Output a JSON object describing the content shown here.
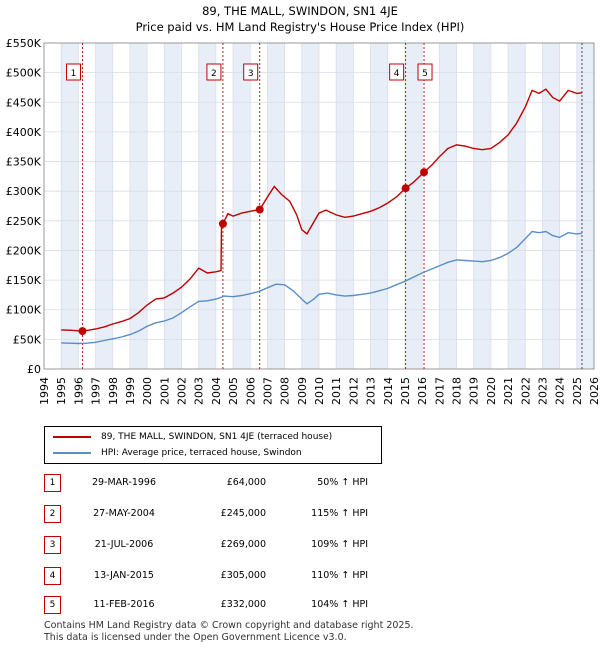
{
  "chart_data": {
    "type": "line",
    "title": "89, THE MALL, SWINDON, SN1 4JE",
    "subtitle": "Price paid vs. HM Land Registry's House Price Index (HPI)",
    "xlim": [
      1994,
      2026
    ],
    "ylim": [
      0,
      550000
    ],
    "x_ticks": [
      "1994",
      "1995",
      "1996",
      "1997",
      "1998",
      "1999",
      "2000",
      "2001",
      "2002",
      "2003",
      "2004",
      "2005",
      "2006",
      "2007",
      "2008",
      "2009",
      "2010",
      "2011",
      "2012",
      "2013",
      "2014",
      "2015",
      "2016",
      "2017",
      "2018",
      "2019",
      "2020",
      "2021",
      "2022",
      "2023",
      "2024",
      "2025",
      "2026"
    ],
    "y_ticks": [
      {
        "value": 0,
        "label": "£0"
      },
      {
        "value": 50000,
        "label": "£50K"
      },
      {
        "value": 100000,
        "label": "£100K"
      },
      {
        "value": 150000,
        "label": "£150K"
      },
      {
        "value": 200000,
        "label": "£200K"
      },
      {
        "value": 250000,
        "label": "£250K"
      },
      {
        "value": 300000,
        "label": "£300K"
      },
      {
        "value": 350000,
        "label": "£350K"
      },
      {
        "value": 400000,
        "label": "£400K"
      },
      {
        "value": 450000,
        "label": "£450K"
      },
      {
        "value": 500000,
        "label": "£500K"
      },
      {
        "value": 550000,
        "label": "£550K"
      }
    ],
    "grid": true,
    "data_end_year": 2025.3,
    "shaded_years": [
      1995,
      1997,
      1999,
      2001,
      2003,
      2005,
      2007,
      2009,
      2011,
      2013,
      2015,
      2017,
      2019,
      2021,
      2023,
      2025
    ],
    "series": [
      {
        "name": "89, THE MALL, SWINDON, SN1 4JE (terraced house)",
        "color": "#c00000",
        "points": [
          [
            1995.0,
            66000
          ],
          [
            1995.5,
            65500
          ],
          [
            1996.0,
            64500
          ],
          [
            1996.24,
            64000
          ],
          [
            1996.6,
            65500
          ],
          [
            1997.0,
            67500
          ],
          [
            1997.5,
            71000
          ],
          [
            1998.0,
            76000
          ],
          [
            1998.5,
            80000
          ],
          [
            1999.0,
            85000
          ],
          [
            1999.5,
            95000
          ],
          [
            2000.0,
            108000
          ],
          [
            2000.5,
            118000
          ],
          [
            2001.0,
            120000
          ],
          [
            2001.5,
            128000
          ],
          [
            2002.0,
            138000
          ],
          [
            2002.5,
            152000
          ],
          [
            2003.0,
            170000
          ],
          [
            2003.5,
            162000
          ],
          [
            2004.0,
            164000
          ],
          [
            2004.3,
            166000
          ],
          [
            2004.33,
            240000
          ],
          [
            2004.41,
            245000
          ],
          [
            2004.7,
            262000
          ],
          [
            2005.0,
            258000
          ],
          [
            2005.5,
            263000
          ],
          [
            2006.0,
            266000
          ],
          [
            2006.55,
            269000
          ],
          [
            2007.0,
            290000
          ],
          [
            2007.4,
            308000
          ],
          [
            2007.8,
            295000
          ],
          [
            2008.3,
            283000
          ],
          [
            2008.7,
            260000
          ],
          [
            2009.0,
            235000
          ],
          [
            2009.3,
            228000
          ],
          [
            2009.7,
            248000
          ],
          [
            2010.0,
            263000
          ],
          [
            2010.4,
            268000
          ],
          [
            2011.0,
            260000
          ],
          [
            2011.5,
            256000
          ],
          [
            2012.0,
            258000
          ],
          [
            2012.5,
            262000
          ],
          [
            2013.0,
            266000
          ],
          [
            2013.5,
            272000
          ],
          [
            2014.0,
            280000
          ],
          [
            2014.5,
            290000
          ],
          [
            2015.04,
            305000
          ],
          [
            2015.5,
            315000
          ],
          [
            2016.11,
            332000
          ],
          [
            2016.6,
            345000
          ],
          [
            2017.0,
            358000
          ],
          [
            2017.5,
            372000
          ],
          [
            2018.0,
            378000
          ],
          [
            2018.5,
            376000
          ],
          [
            2019.0,
            372000
          ],
          [
            2019.5,
            370000
          ],
          [
            2020.0,
            372000
          ],
          [
            2020.5,
            382000
          ],
          [
            2021.0,
            395000
          ],
          [
            2021.5,
            415000
          ],
          [
            2022.0,
            442000
          ],
          [
            2022.4,
            470000
          ],
          [
            2022.8,
            465000
          ],
          [
            2023.2,
            472000
          ],
          [
            2023.6,
            458000
          ],
          [
            2024.0,
            452000
          ],
          [
            2024.5,
            470000
          ],
          [
            2025.0,
            465000
          ],
          [
            2025.3,
            466000
          ]
        ]
      },
      {
        "name": "HPI: Average price, terraced house, Swindon",
        "color": "#5a8dc8",
        "points": [
          [
            1995.0,
            44000
          ],
          [
            1995.5,
            43500
          ],
          [
            1996.0,
            43000
          ],
          [
            1996.5,
            43500
          ],
          [
            1997.0,
            45000
          ],
          [
            1997.5,
            48000
          ],
          [
            1998.0,
            51000
          ],
          [
            1998.5,
            54000
          ],
          [
            1999.0,
            58000
          ],
          [
            1999.5,
            64000
          ],
          [
            2000.0,
            72000
          ],
          [
            2000.5,
            78000
          ],
          [
            2001.0,
            81000
          ],
          [
            2001.5,
            86000
          ],
          [
            2002.0,
            95000
          ],
          [
            2002.5,
            105000
          ],
          [
            2003.0,
            114000
          ],
          [
            2003.5,
            115000
          ],
          [
            2004.0,
            118000
          ],
          [
            2004.5,
            123000
          ],
          [
            2005.0,
            122000
          ],
          [
            2005.5,
            124000
          ],
          [
            2006.0,
            127000
          ],
          [
            2006.5,
            131000
          ],
          [
            2007.0,
            137000
          ],
          [
            2007.5,
            143000
          ],
          [
            2008.0,
            142000
          ],
          [
            2008.5,
            132000
          ],
          [
            2009.0,
            118000
          ],
          [
            2009.3,
            110000
          ],
          [
            2009.7,
            118000
          ],
          [
            2010.0,
            126000
          ],
          [
            2010.5,
            128000
          ],
          [
            2011.0,
            125000
          ],
          [
            2011.5,
            123000
          ],
          [
            2012.0,
            124000
          ],
          [
            2012.5,
            126000
          ],
          [
            2013.0,
            128000
          ],
          [
            2013.5,
            132000
          ],
          [
            2014.0,
            136000
          ],
          [
            2014.5,
            142000
          ],
          [
            2015.0,
            148000
          ],
          [
            2015.5,
            155000
          ],
          [
            2016.0,
            162000
          ],
          [
            2016.5,
            168000
          ],
          [
            2017.0,
            174000
          ],
          [
            2017.5,
            180000
          ],
          [
            2018.0,
            184000
          ],
          [
            2018.5,
            183000
          ],
          [
            2019.0,
            182000
          ],
          [
            2019.5,
            181000
          ],
          [
            2020.0,
            183000
          ],
          [
            2020.5,
            188000
          ],
          [
            2021.0,
            195000
          ],
          [
            2021.5,
            205000
          ],
          [
            2022.0,
            220000
          ],
          [
            2022.4,
            232000
          ],
          [
            2022.8,
            230000
          ],
          [
            2023.2,
            232000
          ],
          [
            2023.6,
            225000
          ],
          [
            2024.0,
            222000
          ],
          [
            2024.5,
            230000
          ],
          [
            2025.0,
            228000
          ],
          [
            2025.3,
            229000
          ]
        ]
      }
    ],
    "sales": [
      {
        "id": "1",
        "year": 1996.24,
        "value": 64000
      },
      {
        "id": "2",
        "year": 2004.41,
        "value": 245000
      },
      {
        "id": "3",
        "year": 2006.55,
        "value": 269000
      },
      {
        "id": "4",
        "year": 2015.04,
        "value": 305000
      },
      {
        "id": "5",
        "year": 2016.11,
        "value": 332000
      }
    ]
  },
  "legend": {
    "property_label": "89, THE MALL, SWINDON, SN1 4JE (terraced house)",
    "hpi_label": "HPI: Average price, terraced house, Swindon"
  },
  "sales_table": [
    {
      "id": "1",
      "date": "29-MAR-1996",
      "price": "£64,000",
      "hpi": "50% ↑ HPI"
    },
    {
      "id": "2",
      "date": "27-MAY-2004",
      "price": "£245,000",
      "hpi": "115% ↑ HPI"
    },
    {
      "id": "3",
      "date": "21-JUL-2006",
      "price": "£269,000",
      "hpi": "109% ↑ HPI"
    },
    {
      "id": "4",
      "date": "13-JAN-2015",
      "price": "£305,000",
      "hpi": "110% ↑ HPI"
    },
    {
      "id": "5",
      "date": "11-FEB-2016",
      "price": "£332,000",
      "hpi": "104% ↑ HPI"
    }
  ],
  "footer": {
    "line1": "Contains HM Land Registry data © Crown copyright and database right 2025.",
    "line2": "This data is licensed under the Open Government Licence v3.0."
  },
  "colors": {
    "property": "#c00000",
    "hpi": "#5a8dc8",
    "shade": "#e8eef7",
    "grid": "#d8dde6"
  }
}
